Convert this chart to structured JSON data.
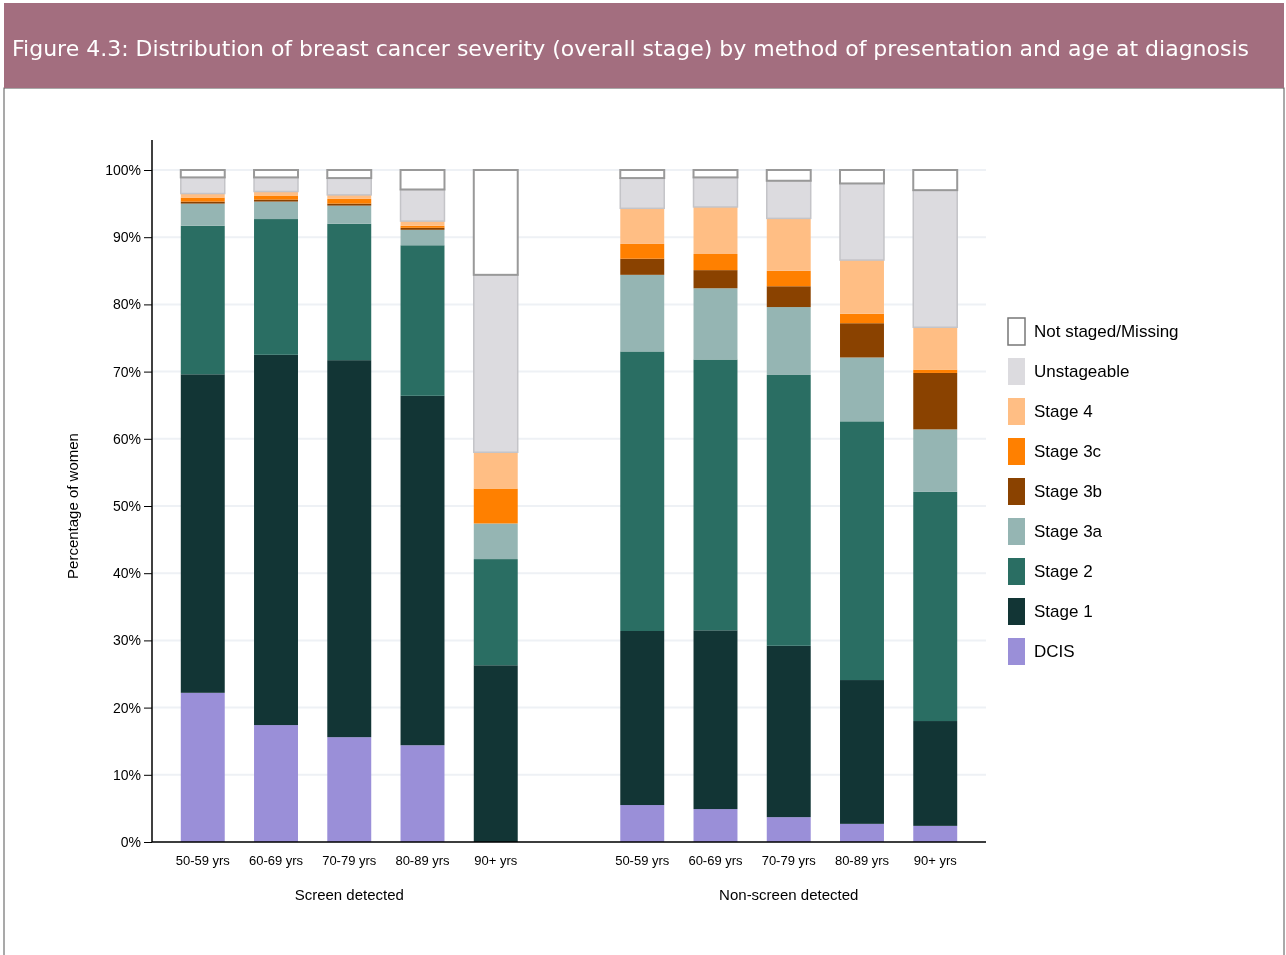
{
  "chart_data": {
    "type": "bar",
    "stacked": true,
    "title": "Figure 4.3: Distribution of breast cancer severity (overall stage) by method of presentation and age at diagnosis",
    "ylabel": "Percentage of women",
    "categories": [
      "50-59 yrs",
      "60-69 yrs",
      "70-79 yrs",
      "80-89 yrs",
      "90+ yrs",
      null,
      "50-59 yrs",
      "60-69 yrs",
      "70-79 yrs",
      "80-89 yrs",
      "90+ yrs"
    ],
    "annotations": [
      "Screen detected",
      "Non-screen detected"
    ],
    "series": [
      {
        "name": "DCIS",
        "color": "#9a8fd8",
        "values": [
          22.2,
          17.4,
          15.6,
          14.4,
          0,
          null,
          5.5,
          4.9,
          3.7,
          2.7,
          2.4
        ]
      },
      {
        "name": "Stage 1",
        "color": "#123535",
        "values": [
          47.4,
          55.1,
          56.1,
          52.0,
          26.3,
          null,
          25.9,
          26.6,
          25.5,
          21.4,
          15.6
        ]
      },
      {
        "name": "Stage 2",
        "color": "#2a6e63",
        "values": [
          22.1,
          20.2,
          20.3,
          22.4,
          15.8,
          null,
          41.6,
          40.3,
          40.3,
          38.5,
          34.1
        ]
      },
      {
        "name": "Stage 3a",
        "color": "#95b5b3",
        "values": [
          3.3,
          2.6,
          2.7,
          2.3,
          5.3,
          null,
          11.4,
          10.6,
          10.1,
          9.5,
          9.3
        ]
      },
      {
        "name": "Stage 3b",
        "color": "#8a4200",
        "values": [
          0.3,
          0.3,
          0.3,
          0.3,
          0,
          null,
          2.4,
          2.7,
          3.1,
          5.1,
          8.4
        ]
      },
      {
        "name": "Stage 3c",
        "color": "#ff8000",
        "values": [
          0.6,
          0.6,
          0.7,
          0.3,
          5.2,
          null,
          2.2,
          2.4,
          2.3,
          1.4,
          0.5
        ]
      },
      {
        "name": "Stage 4",
        "color": "#ffbe84",
        "values": [
          0.6,
          0.6,
          0.6,
          0.7,
          5.4,
          null,
          5.3,
          7.0,
          7.8,
          8.0,
          6.3
        ]
      },
      {
        "name": "Unstageable",
        "color": "#dcdbdf",
        "values": [
          2.4,
          2.1,
          2.5,
          4.7,
          26.4,
          null,
          4.5,
          4.4,
          5.6,
          11.4,
          20.4
        ]
      },
      {
        "name": "Not staged/Missing",
        "color": "#ffffff",
        "values": [
          1.1,
          1.1,
          1.2,
          2.9,
          15.6,
          null,
          1.2,
          1.1,
          1.6,
          2.0,
          3.0
        ]
      }
    ],
    "ylim": [
      0,
      100
    ],
    "yticks": [
      {
        "value": 0,
        "label": "0%"
      },
      {
        "value": 10,
        "label": "10%"
      },
      {
        "value": 20,
        "label": "20%"
      },
      {
        "value": 30,
        "label": "30%"
      },
      {
        "value": 40,
        "label": "40%"
      },
      {
        "value": 50,
        "label": "50%"
      },
      {
        "value": 60,
        "label": "60%"
      },
      {
        "value": 70,
        "label": "70%"
      },
      {
        "value": 80,
        "label": "80%"
      },
      {
        "value": 90,
        "label": "90%"
      },
      {
        "value": 100,
        "label": "100%"
      }
    ],
    "grid": "y",
    "legend": "right"
  }
}
